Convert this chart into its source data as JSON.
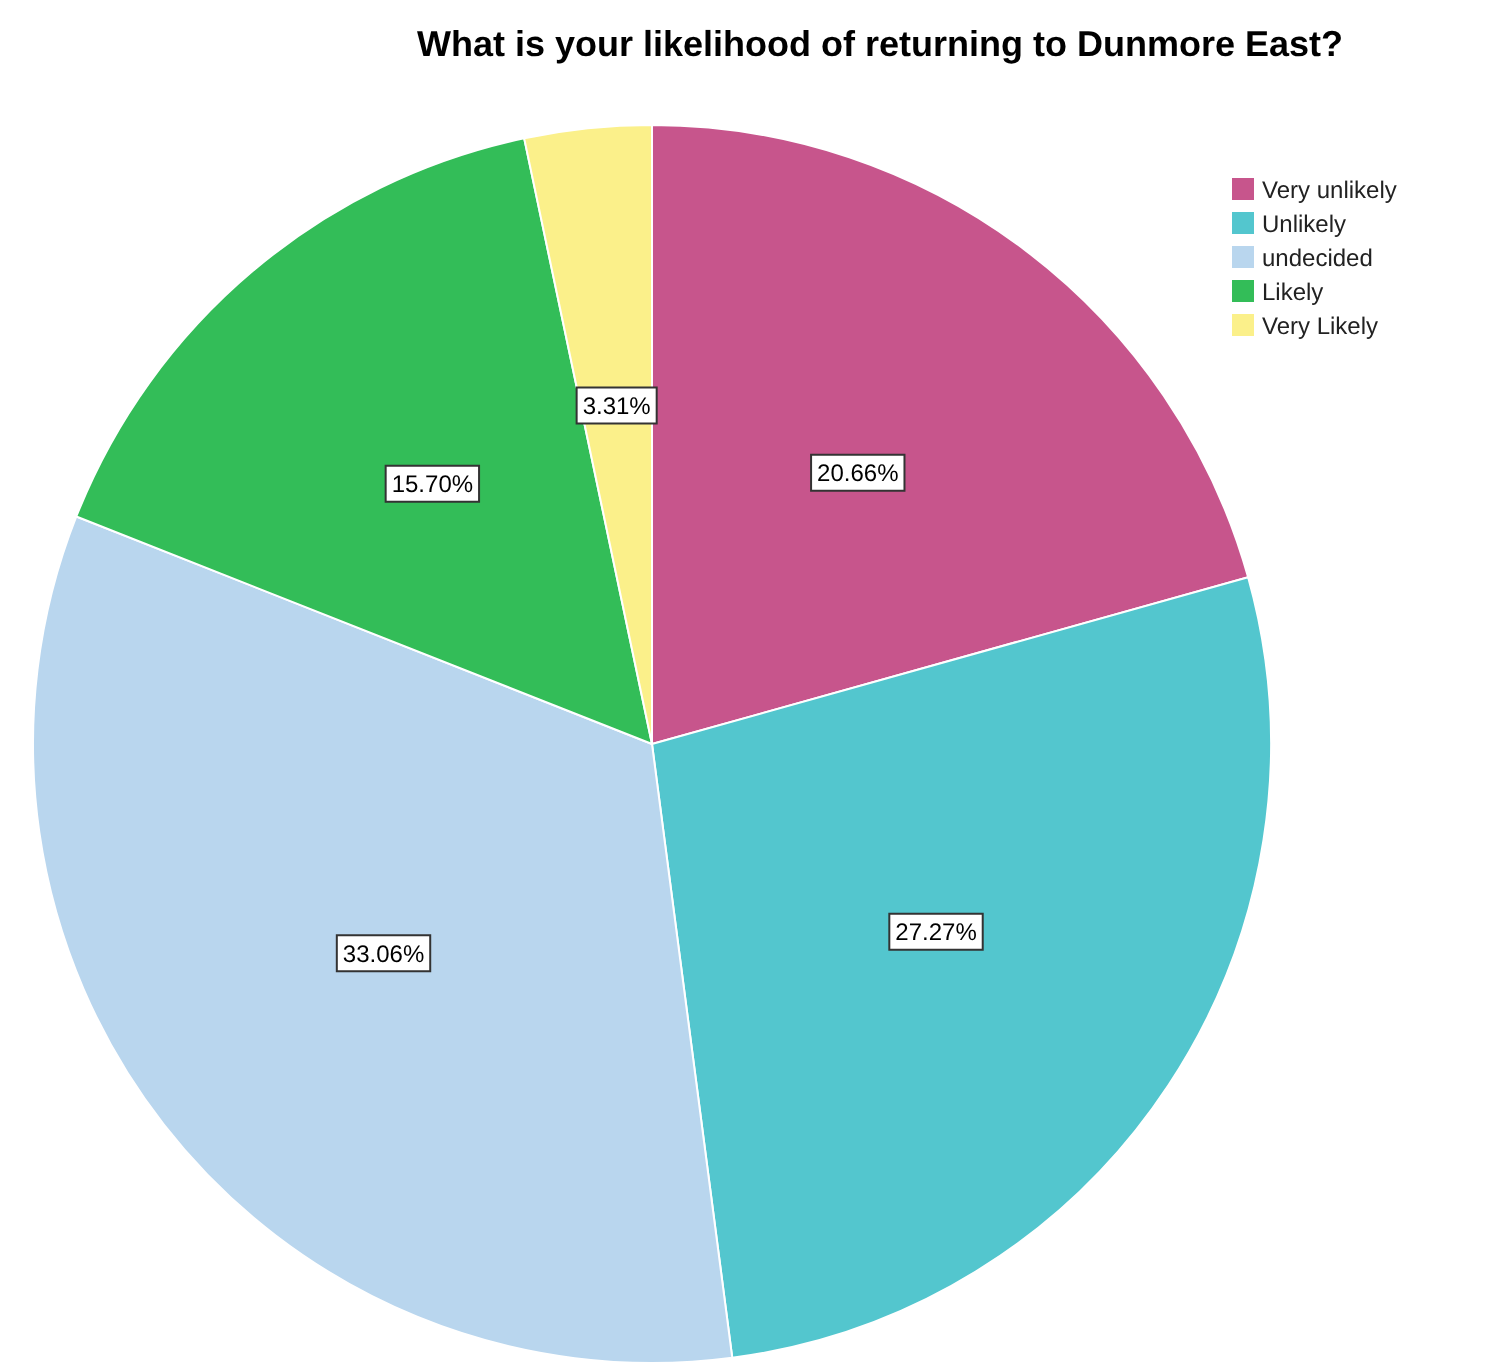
{
  "chart_data": {
    "type": "pie",
    "title": "What is your likelihood of returning to Dunmore East?",
    "categories": [
      "Very unlikely",
      "Unlikely",
      "undecided",
      "Likely",
      "Very Likely"
    ],
    "values": [
      20.66,
      27.27,
      33.06,
      15.7,
      3.31
    ],
    "colors": [
      "#c7558c",
      "#53c6ce",
      "#b9d6ee",
      "#33bd58",
      "#fbf08a"
    ],
    "value_labels": [
      "20.66%",
      "27.27%",
      "33.06%",
      "15.70%",
      "3.31%"
    ],
    "legend": "top right"
  }
}
